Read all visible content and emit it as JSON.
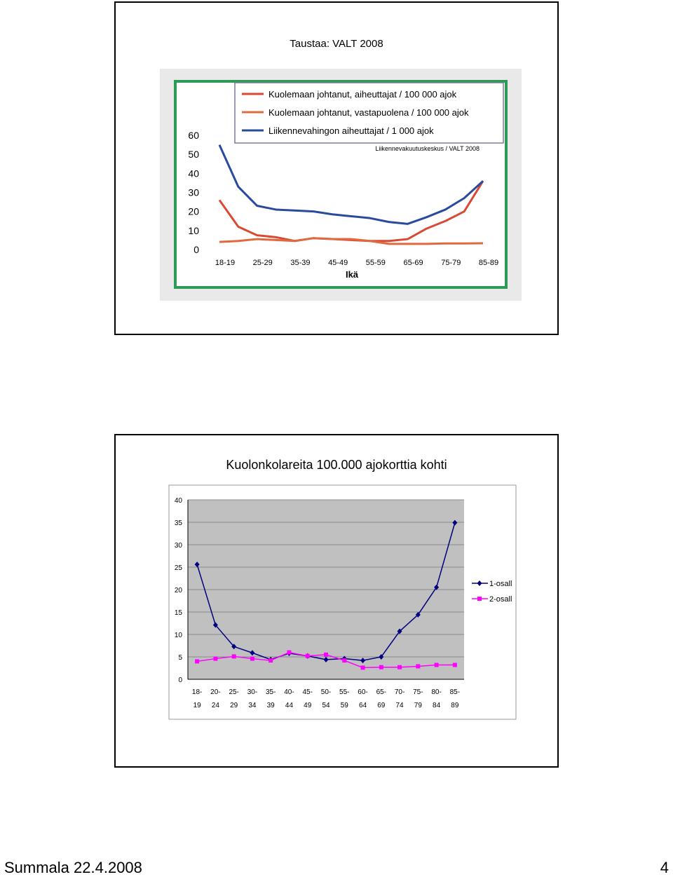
{
  "slides": [
    {
      "title": "Taustaa:  VALT 2008",
      "chart_data": {
        "type": "line",
        "categories": [
          "18-19",
          "20-24",
          "25-29",
          "30-34",
          "35-39",
          "40-44",
          "45-49",
          "50-54",
          "55-59",
          "60-64",
          "65-69",
          "70-74",
          "75-79",
          "80-84",
          "85-89"
        ],
        "x_tick_labels": [
          "18-19",
          "25-29",
          "35-39",
          "45-49",
          "55-59",
          "65-69",
          "75-79",
          "85-89"
        ],
        "xlabel": "Ikä",
        "ylim": [
          0,
          60
        ],
        "y_ticks": [
          0,
          10,
          20,
          30,
          40,
          50,
          60
        ],
        "source_note": "Liikennevakuutuskeskus / VALT 2008",
        "legend_position": "top",
        "series": [
          {
            "name": "Kuolemaan johtanut, aiheuttajat / 100 000 ajok",
            "color": "#d94a35",
            "values": [
              26,
              12,
              7.5,
              6.5,
              4.5,
              6,
              5.5,
              5,
              4.5,
              4.5,
              5.5,
              11,
              15,
              20,
              36
            ]
          },
          {
            "name": "Kuolemaan johtanut, vastapuolena / 100 000 ajok",
            "color": "#e06a40",
            "values": [
              4,
              4.5,
              5.5,
              5,
              4.5,
              6,
              5.5,
              5.5,
              4.5,
              3,
              3,
              3,
              3.2,
              3.2,
              3.3
            ]
          },
          {
            "name": "Liikennevahingon aiheuttajat / 1 000 ajok",
            "color": "#2a4a9e",
            "values": [
              55,
              33,
              23,
              21,
              20.5,
              20,
              18.5,
              17.5,
              16.5,
              14.5,
              13.5,
              17,
              21,
              27,
              36
            ]
          }
        ]
      }
    },
    {
      "title": "Kuolonkolareita 100.000 ajokorttia kohti",
      "chart_data": {
        "type": "line",
        "categories": [
          "18-19",
          "20-24",
          "25-29",
          "30-34",
          "35-39",
          "40-44",
          "45-49",
          "50-54",
          "55-59",
          "60-64",
          "65-69",
          "70-74",
          "75-79",
          "80-84",
          "85-89"
        ],
        "category_labels_top": [
          "18-",
          "20-",
          "25-",
          "30-",
          "35-",
          "40-",
          "45-",
          "50-",
          "55-",
          "60-",
          "65-",
          "70-",
          "75-",
          "80-",
          "85-"
        ],
        "category_labels_bottom": [
          "19",
          "24",
          "29",
          "34",
          "39",
          "44",
          "49",
          "54",
          "59",
          "64",
          "69",
          "74",
          "79",
          "84",
          "89"
        ],
        "ylim": [
          0,
          40
        ],
        "y_ticks": [
          0,
          5,
          10,
          15,
          20,
          25,
          30,
          35,
          40
        ],
        "grid": true,
        "legend_position": "right",
        "series": [
          {
            "name": "1-osall",
            "color": "#000080",
            "marker": "diamond",
            "values": [
              25.6,
              12.1,
              7.3,
              5.9,
              4.4,
              5.8,
              5.2,
              4.4,
              4.6,
              4.2,
              5.0,
              10.7,
              14.4,
              20.5,
              34.9
            ]
          },
          {
            "name": "2-osall",
            "color": "#ff00ff",
            "marker": "square",
            "values": [
              4.0,
              4.6,
              5.1,
              4.6,
              4.2,
              6.0,
              5.2,
              5.5,
              4.2,
              2.6,
              2.7,
              2.7,
              2.9,
              3.2,
              3.2
            ]
          }
        ]
      }
    }
  ],
  "footer": {
    "left": "Summala 22.4.2008",
    "page": "4"
  }
}
